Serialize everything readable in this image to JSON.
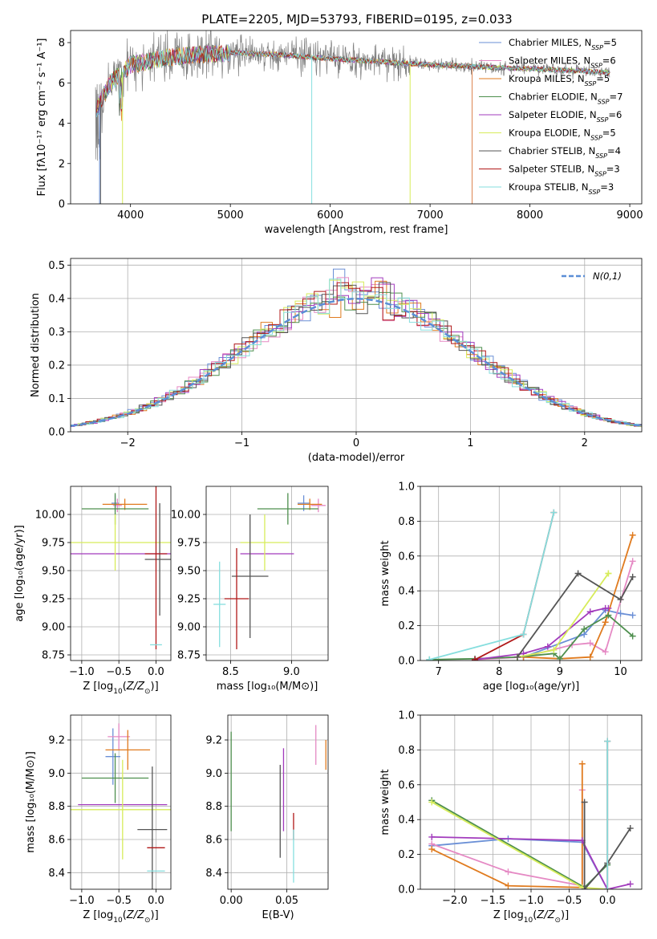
{
  "title": "PLATE=2205, MJD=53793, FIBERID=0195, z=0.033",
  "colors": {
    "Chabrier MILES": "#6a8fd6",
    "Salpeter MILES": "#e589c4",
    "Kroupa MILES": "#e07b1f",
    "Chabrier ELODIE": "#4e8f4e",
    "Salpeter ELODIE": "#a23bbd",
    "Kroupa ELODIE": "#d7ec5a",
    "Chabrier STELIB": "#555555",
    "Salpeter STELIB": "#b01818",
    "Kroupa STELIB": "#86dede",
    "data": "#808080",
    "normal": "#5b8ed6"
  },
  "models": [
    {
      "name": "Chabrier MILES",
      "n_ssp": 5
    },
    {
      "name": "Salpeter MILES",
      "n_ssp": 6
    },
    {
      "name": "Kroupa MILES",
      "n_ssp": 5
    },
    {
      "name": "Chabrier ELODIE",
      "n_ssp": 7
    },
    {
      "name": "Salpeter ELODIE",
      "n_ssp": 6
    },
    {
      "name": "Kroupa ELODIE",
      "n_ssp": 5
    },
    {
      "name": "Chabrier STELIB",
      "n_ssp": 4
    },
    {
      "name": "Salpeter STELIB",
      "n_ssp": 3
    },
    {
      "name": "Kroupa STELIB",
      "n_ssp": 3
    }
  ],
  "chart_data": [
    {
      "id": "spectrum",
      "type": "line",
      "xlabel": "wavelength [Angstrom, rest frame]",
      "ylabel": "Flux [f_λ 10^-17 erg cm^-2 s^-1 A^-1]",
      "xlim": [
        3400,
        9120
      ],
      "ylim": [
        0,
        8.6
      ],
      "xticks": [
        4000,
        5000,
        6000,
        7000,
        8000,
        9000
      ],
      "yticks": [
        0,
        2,
        4,
        6,
        8
      ],
      "continuum": {
        "x": [
          3650,
          3800,
          4000,
          4400,
          5000,
          5500,
          6000,
          6500,
          7000,
          7500,
          8000,
          8500,
          8800
        ],
        "y": [
          4.6,
          6.0,
          6.9,
          7.3,
          7.5,
          7.4,
          7.2,
          7.05,
          6.9,
          6.8,
          6.7,
          6.6,
          6.5
        ]
      },
      "legend": "top-right"
    },
    {
      "id": "residual-histogram",
      "type": "line",
      "xlabel": "(data-model)/error",
      "ylabel": "Normed distribution",
      "xlim": [
        -2.5,
        2.5
      ],
      "ylim": [
        0,
        0.52
      ],
      "xticks": [
        -2,
        -1,
        0,
        1,
        2
      ],
      "yticks": [
        0,
        0.1,
        0.2,
        0.3,
        0.4,
        0.5
      ],
      "legend_label": "N(0,1)",
      "legend": "top-right",
      "grid": true
    },
    {
      "id": "age-vs-Z",
      "type": "scatter",
      "xlabel": "Z [log10(Z/Z⊙)]",
      "ylabel": "age  [log10(age/yr)]",
      "xlim": [
        -1.15,
        0.2
      ],
      "ylim": [
        8.7,
        10.25
      ],
      "xticks": [
        -1.0,
        -0.5,
        0.0
      ],
      "yticks": [
        8.75,
        9.0,
        9.25,
        9.5,
        9.75,
        10.0
      ],
      "points": [
        {
          "model": "Chabrier MILES",
          "x": -0.55,
          "y": 10.1,
          "xerr": 0.05,
          "yerr": 0.07
        },
        {
          "model": "Salpeter MILES",
          "x": -0.52,
          "y": 10.08,
          "xerr": 0.06,
          "yerr": 0.06
        },
        {
          "model": "Kroupa MILES",
          "x": -0.42,
          "y": 10.09,
          "xerr": 0.3,
          "yerr": 0.05
        },
        {
          "model": "Chabrier ELODIE",
          "x": -0.55,
          "y": 10.05,
          "xerr": 0.45,
          "yerr": 0.14
        },
        {
          "model": "Salpeter ELODIE",
          "x": -0.45,
          "y": 9.65,
          "xerr": 0.7,
          "yerr": 0.0
        },
        {
          "model": "Kroupa ELODIE",
          "x": -0.55,
          "y": 9.75,
          "xerr": 0.75,
          "yerr": 0.25
        },
        {
          "model": "Chabrier STELIB",
          "x": 0.05,
          "y": 9.6,
          "xerr": 0.2,
          "yerr": 0.5
        },
        {
          "model": "Salpeter STELIB",
          "x": 0.0,
          "y": 9.65,
          "xerr": 0.15,
          "yerr": 0.85
        },
        {
          "model": "Kroupa STELIB",
          "x": 0.0,
          "y": 8.84,
          "xerr": 0.08,
          "yerr": 0.0
        }
      ]
    },
    {
      "id": "age-vs-mass",
      "type": "scatter",
      "xlabel": "mass [log10(M/M⊙)]",
      "ylabel": "",
      "xlim": [
        8.3,
        9.3
      ],
      "ylim": [
        8.7,
        10.25
      ],
      "xticks": [
        8.5,
        9.0
      ],
      "yticks": [
        8.75,
        9.0,
        9.25,
        9.5,
        9.75,
        10.0
      ],
      "points": [
        {
          "model": "Chabrier MILES",
          "x": 9.1,
          "y": 10.1,
          "xerr": 0.05,
          "yerr": 0.07
        },
        {
          "model": "Salpeter MILES",
          "x": 9.22,
          "y": 10.08,
          "xerr": 0.06,
          "yerr": 0.06
        },
        {
          "model": "Kroupa MILES",
          "x": 9.15,
          "y": 10.09,
          "xerr": 0.1,
          "yerr": 0.05
        },
        {
          "model": "Chabrier ELODIE",
          "x": 8.97,
          "y": 10.05,
          "xerr": 0.25,
          "yerr": 0.14
        },
        {
          "model": "Salpeter ELODIE",
          "x": 8.8,
          "y": 9.65,
          "xerr": 0.22,
          "yerr": 0.0
        },
        {
          "model": "Kroupa ELODIE",
          "x": 8.78,
          "y": 9.75,
          "xerr": 0.2,
          "yerr": 0.25
        },
        {
          "model": "Chabrier STELIB",
          "x": 8.66,
          "y": 9.45,
          "xerr": 0.15,
          "yerr": 0.55
        },
        {
          "model": "Salpeter STELIB",
          "x": 8.55,
          "y": 9.25,
          "xerr": 0.1,
          "yerr": 0.45
        },
        {
          "model": "Kroupa STELIB",
          "x": 8.41,
          "y": 9.2,
          "xerr": 0.05,
          "yerr": 0.38
        }
      ]
    },
    {
      "id": "weight-vs-age",
      "type": "line",
      "xlabel": "age  [log10(age/yr)]",
      "ylabel": "mass weight",
      "xlim": [
        6.7,
        10.35
      ],
      "ylim": [
        0,
        1.0
      ],
      "xticks": [
        7,
        8,
        9,
        10
      ],
      "yticks": [
        0,
        0.2,
        0.4,
        0.6,
        0.8,
        1.0
      ],
      "grid": true,
      "series": [
        {
          "model": "Chabrier MILES",
          "x": [
            8.4,
            9.4,
            9.75,
            10.0,
            10.2
          ],
          "y": [
            0.02,
            0.15,
            0.29,
            0.27,
            0.26
          ]
        },
        {
          "model": "Salpeter MILES",
          "x": [
            7.6,
            8.4,
            9.2,
            9.5,
            9.75,
            10.2
          ],
          "y": [
            0.005,
            0.02,
            0.09,
            0.1,
            0.05,
            0.57
          ]
        },
        {
          "model": "Kroupa MILES",
          "x": [
            8.4,
            9.0,
            9.5,
            9.75,
            10.2
          ],
          "y": [
            0.02,
            0.01,
            0.02,
            0.22,
            0.72
          ]
        },
        {
          "model": "Chabrier ELODIE",
          "x": [
            6.85,
            7.6,
            8.3,
            8.9,
            9.0,
            9.4,
            9.8,
            10.2
          ],
          "y": [
            0.005,
            0.01,
            0.02,
            0.04,
            0.01,
            0.18,
            0.26,
            0.14
          ]
        },
        {
          "model": "Salpeter ELODIE",
          "x": [
            7.6,
            8.4,
            8.8,
            9.5,
            9.75,
            9.8
          ],
          "y": [
            0.005,
            0.04,
            0.08,
            0.28,
            0.3,
            0.3
          ]
        },
        {
          "model": "Kroupa ELODIE",
          "x": [
            8.3,
            8.9,
            9.8,
            9.8
          ],
          "y": [
            0.02,
            0.06,
            0.5,
            0.5
          ]
        },
        {
          "model": "Chabrier STELIB",
          "x": [
            8.3,
            9.3,
            10.0,
            10.2
          ],
          "y": [
            0.02,
            0.5,
            0.35,
            0.48
          ]
        },
        {
          "model": "Salpeter STELIB",
          "x": [
            7.6,
            8.4,
            8.9
          ],
          "y": [
            0.005,
            0.15,
            0.85
          ]
        },
        {
          "model": "Kroupa STELIB",
          "x": [
            6.85,
            8.4,
            8.9
          ],
          "y": [
            0.005,
            0.15,
            0.85
          ]
        }
      ]
    },
    {
      "id": "mass-vs-Z",
      "type": "scatter",
      "xlabel": "Z [log10(Z/Z⊙)]",
      "ylabel": "mass [log10(M/M⊙)]",
      "xlim": [
        -1.15,
        0.2
      ],
      "ylim": [
        8.3,
        9.35
      ],
      "xticks": [
        -1.0,
        -0.5,
        0.0
      ],
      "yticks": [
        8.4,
        8.6,
        8.8,
        9.0,
        9.2
      ],
      "points": [
        {
          "model": "Chabrier MILES",
          "x": -0.58,
          "y": 9.1,
          "xerr": 0.1,
          "yerr": 0.17
        },
        {
          "model": "Salpeter MILES",
          "x": -0.5,
          "y": 9.22,
          "xerr": 0.15,
          "yerr": 0.08
        },
        {
          "model": "Kroupa MILES",
          "x": -0.38,
          "y": 9.14,
          "xerr": 0.3,
          "yerr": 0.12
        },
        {
          "model": "Chabrier ELODIE",
          "x": -0.55,
          "y": 8.97,
          "xerr": 0.45,
          "yerr": 0.15
        },
        {
          "model": "Salpeter ELODIE",
          "x": -0.45,
          "y": 8.81,
          "xerr": 0.6,
          "yerr": 0.0
        },
        {
          "model": "Kroupa ELODIE",
          "x": -0.45,
          "y": 8.78,
          "xerr": 0.7,
          "yerr": 0.3
        },
        {
          "model": "Chabrier STELIB",
          "x": -0.05,
          "y": 8.66,
          "xerr": 0.2,
          "yerr": 0.38
        },
        {
          "model": "Salpeter STELIB",
          "x": 0.0,
          "y": 8.55,
          "xerr": 0.12,
          "yerr": 0.0
        },
        {
          "model": "Kroupa STELIB",
          "x": 0.0,
          "y": 8.41,
          "xerr": 0.12,
          "yerr": 0.0
        }
      ]
    },
    {
      "id": "mass-vs-EBV",
      "type": "scatter",
      "xlabel": "E(B-V)",
      "ylabel": "",
      "xlim": [
        -0.003,
        0.087
      ],
      "ylim": [
        8.3,
        9.35
      ],
      "xticks": [
        0.0,
        0.05
      ],
      "yticks": [
        8.4,
        8.6,
        8.8,
        9.0,
        9.2
      ],
      "points": [
        {
          "model": "Chabrier ELODIE",
          "x": 0.0,
          "y": 8.95,
          "xerr": 0.0,
          "yerr": 0.3
        },
        {
          "model": "Chabrier STELIB",
          "x": 0.044,
          "y": 8.77,
          "xerr": 0.0,
          "yerr": 0.28
        },
        {
          "model": "Salpeter ELODIE",
          "x": 0.047,
          "y": 8.9,
          "xerr": 0.0,
          "yerr": 0.25
        },
        {
          "model": "Salpeter STELIB",
          "x": 0.056,
          "y": 8.68,
          "xerr": 0.0,
          "yerr": 0.08
        },
        {
          "model": "Kroupa STELIB",
          "x": 0.056,
          "y": 8.5,
          "xerr": 0.0,
          "yerr": 0.16
        },
        {
          "model": "Salpeter MILES",
          "x": 0.076,
          "y": 9.17,
          "xerr": 0.0,
          "yerr": 0.12
        },
        {
          "model": "Kroupa MILES",
          "x": 0.085,
          "y": 9.11,
          "xerr": 0.0,
          "yerr": 0.09
        }
      ]
    },
    {
      "id": "weight-vs-Z",
      "type": "line",
      "xlabel": "Z [log10(Z/Z⊙)]",
      "ylabel": "mass weight",
      "xlim": [
        -2.45,
        0.45
      ],
      "ylim": [
        0,
        1.0
      ],
      "xticks": [
        -2.0,
        -1.5,
        -1.0,
        -0.5,
        0.0
      ],
      "yticks": [
        0,
        0.2,
        0.4,
        0.6,
        0.8,
        1.0
      ],
      "grid": true,
      "series": [
        {
          "model": "Chabrier MILES",
          "x": [
            -2.3,
            -1.3,
            -0.33,
            0.0
          ],
          "y": [
            0.25,
            0.29,
            0.27,
            0.0
          ]
        },
        {
          "model": "Salpeter MILES",
          "x": [
            -2.3,
            -1.3,
            -0.33,
            -0.33
          ],
          "y": [
            0.26,
            0.1,
            0.02,
            0.57
          ]
        },
        {
          "model": "Kroupa MILES",
          "x": [
            -2.3,
            -1.3,
            -0.33,
            -0.33
          ],
          "y": [
            0.23,
            0.02,
            0.01,
            0.72
          ]
        },
        {
          "model": "Chabrier ELODIE",
          "x": [
            -2.3,
            -0.3,
            0.0
          ],
          "y": [
            0.51,
            0.01,
            0.14
          ]
        },
        {
          "model": "Salpeter ELODIE",
          "x": [
            -2.3,
            -0.33,
            0.0,
            0.3
          ],
          "y": [
            0.3,
            0.28,
            0.0,
            0.03
          ]
        },
        {
          "model": "Kroupa ELODIE",
          "x": [
            -2.3,
            -0.33,
            0.0
          ],
          "y": [
            0.5,
            0.01,
            0.0
          ]
        },
        {
          "model": "Chabrier STELIB",
          "x": [
            -0.3,
            -0.3,
            0.0,
            0.3
          ],
          "y": [
            0.5,
            0.0,
            0.15,
            0.35
          ]
        },
        {
          "model": "Salpeter STELIB",
          "x": [
            0.0,
            0.0
          ],
          "y": [
            0.0,
            0.85
          ]
        },
        {
          "model": "Kroupa STELIB",
          "x": [
            0.0,
            0.0
          ],
          "y": [
            0.0,
            0.85
          ]
        }
      ]
    }
  ]
}
